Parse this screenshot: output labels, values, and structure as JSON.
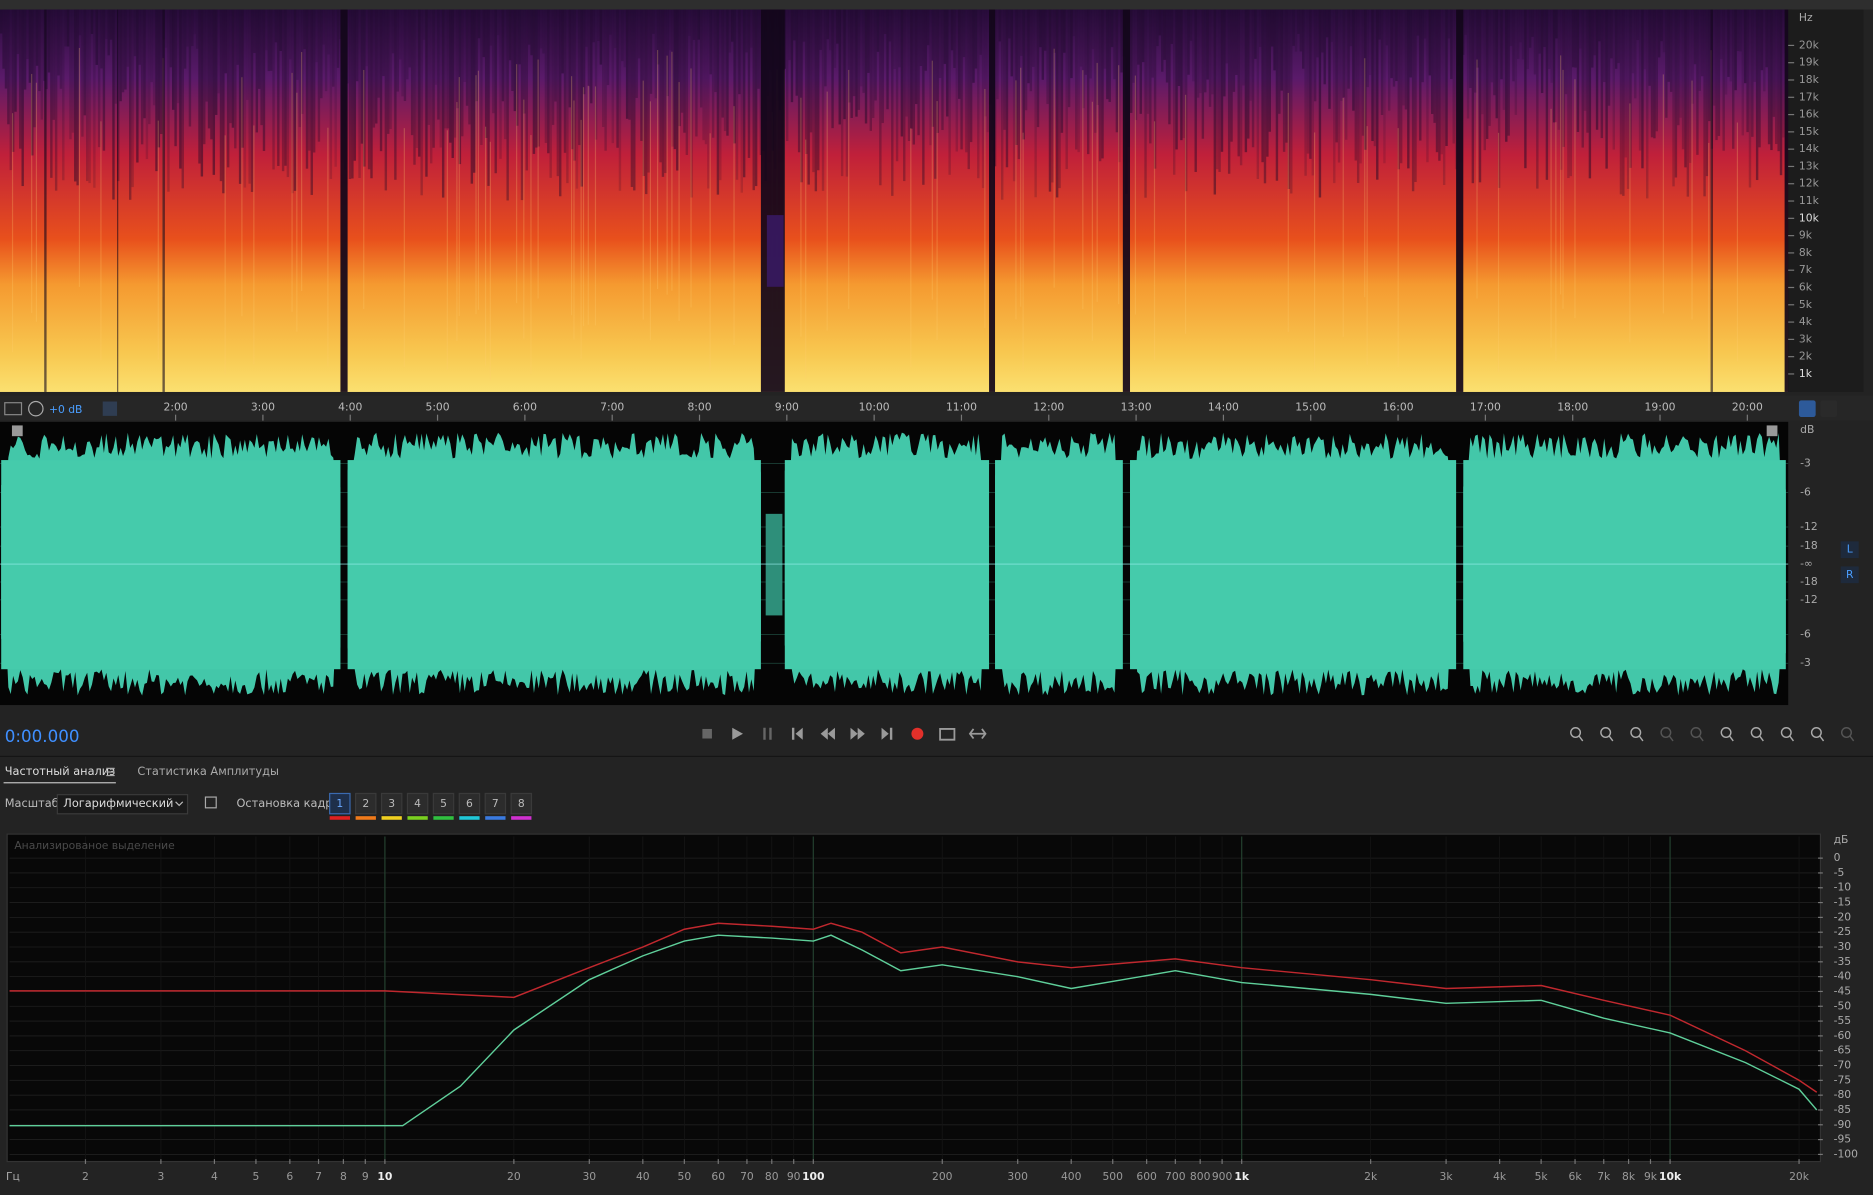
{
  "spectrogram": {
    "unit": "Hz",
    "freq_labels": [
      "20k",
      "19k",
      "18k",
      "17k",
      "16k",
      "15k",
      "14k",
      "13k",
      "12k",
      "11k",
      "10k",
      "9k",
      "8k",
      "7k",
      "6k",
      "5k",
      "4k",
      "3k",
      "2k",
      "1k"
    ]
  },
  "timeline": {
    "labels": [
      "2:00",
      "3:00",
      "4:00",
      "5:00",
      "6:00",
      "7:00",
      "8:00",
      "9:00",
      "10:00",
      "11:00",
      "12:00",
      "13:00",
      "14:00",
      "15:00",
      "16:00",
      "17:00",
      "18:00",
      "19:00",
      "20:00"
    ]
  },
  "waveform": {
    "unit": "dB",
    "db_labels": [
      "-3",
      "-6",
      "-12",
      "-18",
      "-∞",
      "-18",
      "-12",
      "-6",
      "-3"
    ],
    "channels": [
      "L",
      "R"
    ]
  },
  "header": {
    "gain": "+0 dB",
    "time": "0:00.000"
  },
  "tabs": [
    "Частотный анализ",
    "Статистика Амплитуды"
  ],
  "controls": {
    "scale_label": "Масштаб:",
    "scale_value": "Логарифмический",
    "freeze_label": "Остановка кадра:",
    "freeze_buttons": [
      "1",
      "2",
      "3",
      "4",
      "5",
      "6",
      "7",
      "8"
    ]
  },
  "frequency_analysis": {
    "title": "Анализированое выделение",
    "x_unit": "Гц",
    "y_unit": "дБ",
    "log_x": true,
    "xlim": [
      1.33,
      22150
    ],
    "ylim": [
      -101.6,
      7.3
    ],
    "xticks": [
      2,
      3,
      4,
      5,
      6,
      7,
      8,
      9,
      10,
      20,
      30,
      40,
      50,
      60,
      70,
      80,
      90,
      100,
      200,
      300,
      400,
      500,
      600,
      700,
      800,
      900,
      {
        "value": 1000,
        "label": "1k"
      },
      {
        "value": 2000,
        "label": "2k"
      },
      {
        "value": 3000,
        "label": "3k"
      },
      {
        "value": 4000,
        "label": "4k"
      },
      {
        "value": 5000,
        "label": "5k"
      },
      {
        "value": 6000,
        "label": "6k"
      },
      {
        "value": 7000,
        "label": "7k"
      },
      {
        "value": 8000,
        "label": "8k"
      },
      {
        "value": 9000,
        "label": "9k"
      },
      {
        "value": 10000,
        "label": "10k"
      },
      {
        "value": 20000,
        "label": "20k"
      }
    ],
    "yticks": [
      0,
      -5,
      -10,
      -15,
      -20,
      -25,
      -30,
      -35,
      -40,
      -45,
      -50,
      -55,
      -60,
      -65,
      -70,
      -75,
      -80,
      -85,
      -90,
      -95,
      -100
    ],
    "series": [
      {
        "color": "#c0282e",
        "x": [
          1.33,
          10,
          20,
          30,
          40,
          50,
          60,
          80,
          100,
          110,
          130,
          160,
          200,
          300,
          400,
          700,
          1000,
          2000,
          3000,
          5000,
          7000,
          10000,
          15000,
          20000,
          22000
        ],
        "values": [
          -44.8,
          -44.8,
          -47,
          -37,
          -30,
          -24,
          -22,
          -23,
          -24,
          -22,
          -25,
          -32,
          -30,
          -35,
          -37,
          -34,
          -37,
          -41,
          -44,
          -43,
          -48,
          -53,
          -65,
          -75,
          -79
        ]
      },
      {
        "color": "#5fcf9a",
        "x": [
          1.33,
          11,
          15,
          20,
          30,
          40,
          50,
          60,
          80,
          100,
          110,
          130,
          160,
          200,
          300,
          400,
          700,
          1000,
          2000,
          3000,
          5000,
          7000,
          10000,
          15000,
          20000,
          22000
        ],
        "values": [
          -90.3,
          -90.3,
          -77,
          -58,
          -41,
          -33,
          -28,
          -26,
          -27,
          -28,
          -26,
          -31,
          -38,
          -36,
          -40,
          -44,
          -38,
          -42,
          -46,
          -49,
          -48,
          -54,
          -59,
          -69,
          -78,
          -85
        ]
      }
    ]
  }
}
